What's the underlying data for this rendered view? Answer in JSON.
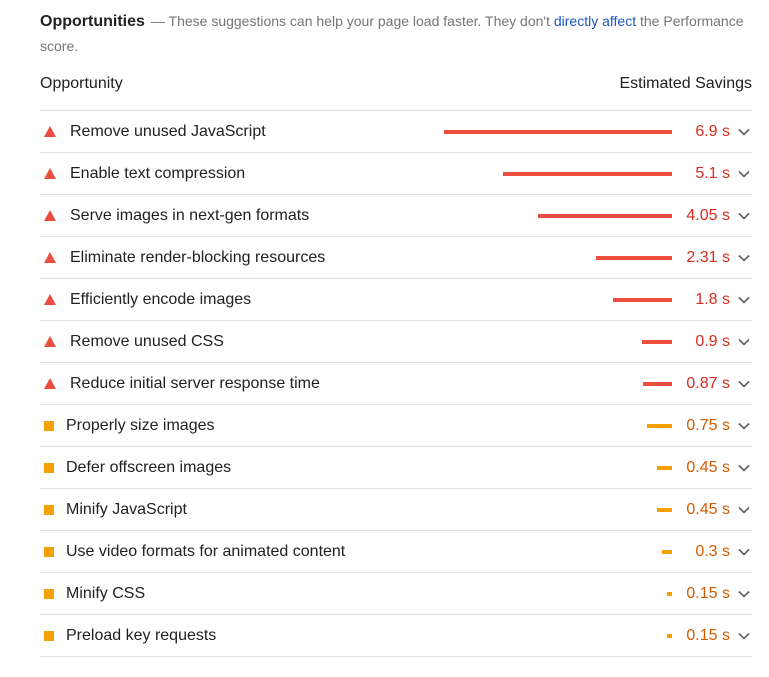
{
  "header": {
    "title": "Opportunities",
    "desc_before": "— These suggestions can help your page load faster. They don't ",
    "link": "directly affect",
    "desc_after": " the Performance score."
  },
  "columns": {
    "opportunity": "Opportunity",
    "savings": "Estimated Savings"
  },
  "colors": {
    "fail": "#eb4e3e",
    "fail_text": "#d72c1f",
    "average": "#f5a001",
    "average_text": "#d65b00",
    "link": "#1a55c4"
  },
  "max_savings_s": 6.9,
  "items": [
    {
      "label": "Remove unused JavaScript",
      "savings": "6.9 s",
      "seconds": 6.9,
      "rating": "fail",
      "icon": "warning-triangle-icon"
    },
    {
      "label": "Enable text compression",
      "savings": "5.1 s",
      "seconds": 5.1,
      "rating": "fail",
      "icon": "warning-triangle-icon"
    },
    {
      "label": "Serve images in next-gen formats",
      "savings": "4.05 s",
      "seconds": 4.05,
      "rating": "fail",
      "icon": "warning-triangle-icon"
    },
    {
      "label": "Eliminate render-blocking resources",
      "savings": "2.31 s",
      "seconds": 2.31,
      "rating": "fail",
      "icon": "warning-triangle-icon"
    },
    {
      "label": "Efficiently encode images",
      "savings": "1.8 s",
      "seconds": 1.8,
      "rating": "fail",
      "icon": "warning-triangle-icon"
    },
    {
      "label": "Remove unused CSS",
      "savings": "0.9 s",
      "seconds": 0.9,
      "rating": "fail",
      "icon": "warning-triangle-icon"
    },
    {
      "label": "Reduce initial server response time",
      "savings": "0.87 s",
      "seconds": 0.87,
      "rating": "fail",
      "icon": "warning-triangle-icon"
    },
    {
      "label": "Properly size images",
      "savings": "0.75 s",
      "seconds": 0.75,
      "rating": "average",
      "icon": "orange-square-icon"
    },
    {
      "label": "Defer offscreen images",
      "savings": "0.45 s",
      "seconds": 0.45,
      "rating": "average",
      "icon": "orange-square-icon"
    },
    {
      "label": "Minify JavaScript",
      "savings": "0.45 s",
      "seconds": 0.45,
      "rating": "average",
      "icon": "orange-square-icon"
    },
    {
      "label": "Use video formats for animated content",
      "savings": "0.3 s",
      "seconds": 0.3,
      "rating": "average",
      "icon": "orange-square-icon"
    },
    {
      "label": "Minify CSS",
      "savings": "0.15 s",
      "seconds": 0.15,
      "rating": "average",
      "icon": "orange-square-icon"
    },
    {
      "label": "Preload key requests",
      "savings": "0.15 s",
      "seconds": 0.15,
      "rating": "average",
      "icon": "orange-square-icon"
    }
  ]
}
